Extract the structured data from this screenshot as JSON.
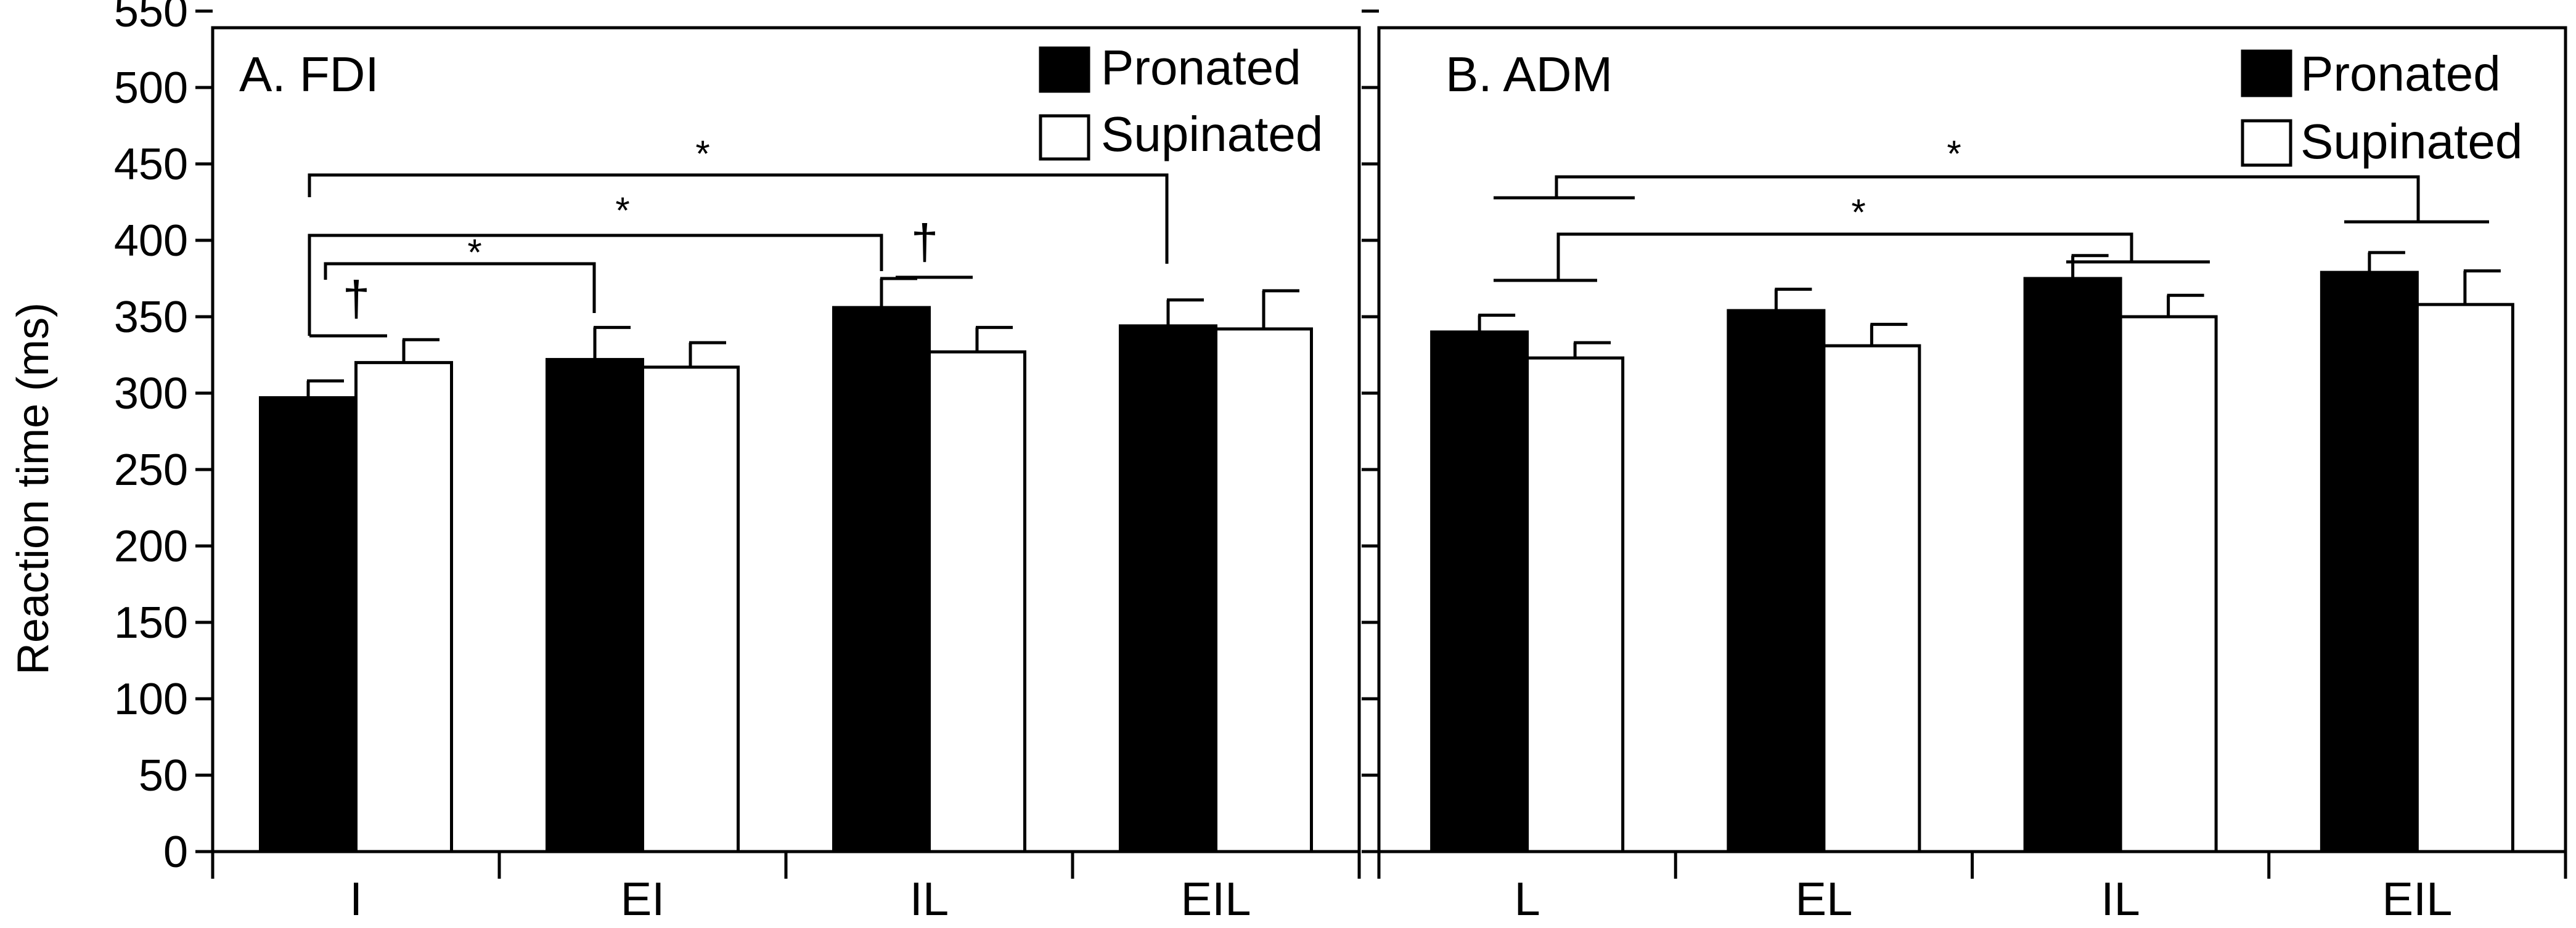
{
  "chart_data": [
    {
      "type": "bar",
      "title": "A. FDI",
      "xlabel": "",
      "ylabel": "Reaction time (ms)",
      "ylim": [
        0,
        550
      ],
      "yticks": [
        0,
        50,
        100,
        150,
        200,
        250,
        300,
        350,
        400,
        450,
        500,
        550
      ],
      "categories": [
        "I",
        "EI",
        "IL",
        "EIL"
      ],
      "legend_position": "top-right",
      "series": [
        {
          "name": "Pronated",
          "color": "#000000",
          "values": [
            297,
            322,
            356,
            344
          ],
          "errors": [
            11,
            21,
            19,
            17
          ]
        },
        {
          "name": "Supinated",
          "color": "#ffffff",
          "values": [
            320,
            317,
            327,
            342
          ],
          "errors": [
            15,
            16,
            16,
            25
          ]
        }
      ],
      "significance": [
        "*",
        "*",
        "*",
        "†",
        "†"
      ]
    },
    {
      "type": "bar",
      "title": "B. ADM",
      "xlabel": "",
      "ylabel": "",
      "ylim": [
        0,
        550
      ],
      "yticks": [
        0,
        50,
        100,
        150,
        200,
        250,
        300,
        350,
        400,
        450,
        500,
        550
      ],
      "categories": [
        "L",
        "EL",
        "IL",
        "EIL"
      ],
      "legend_position": "top-right",
      "series": [
        {
          "name": "Pronated",
          "color": "#000000",
          "values": [
            340,
            354,
            375,
            379
          ],
          "errors": [
            11,
            14,
            15,
            13
          ]
        },
        {
          "name": "Supinated",
          "color": "#ffffff",
          "values": [
            323,
            331,
            350,
            358
          ],
          "errors": [
            10,
            14,
            14,
            22
          ]
        }
      ],
      "significance": [
        "*",
        "*"
      ]
    }
  ]
}
